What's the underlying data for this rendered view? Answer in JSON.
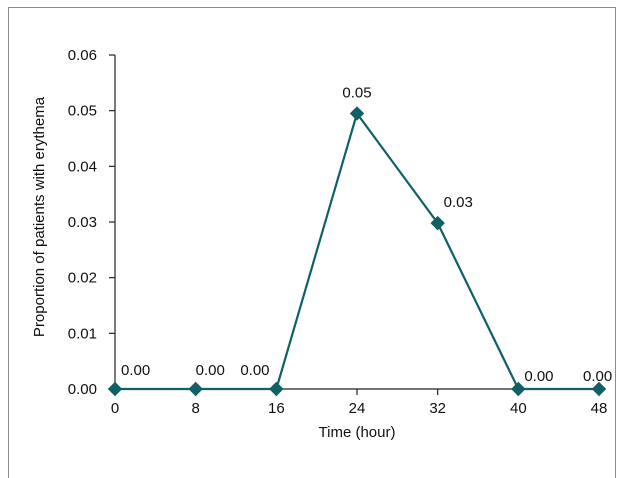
{
  "chart_data": {
    "type": "line",
    "xlabel": "Time (hour)",
    "ylabel": "Proportion of patients with erythema",
    "x": [
      0,
      8,
      16,
      24,
      32,
      40,
      48
    ],
    "y": [
      0.0,
      0.0,
      0.0,
      0.0495,
      0.0298,
      0.0,
      0.0
    ],
    "data_labels": [
      "0.00",
      "0.00",
      "0.00",
      "0.05",
      "0.03",
      "0.00",
      "0.00"
    ],
    "xticks": [
      "0",
      "8",
      "16",
      "24",
      "32",
      "40",
      "48"
    ],
    "yticks": [
      "0.00",
      "0.01",
      "0.02",
      "0.03",
      "0.04",
      "0.05",
      "0.06"
    ],
    "xlim": [
      0,
      48
    ],
    "ylim": [
      0,
      0.06
    ],
    "grid": false,
    "marker": "diamond",
    "line_color": "#0f6166"
  }
}
